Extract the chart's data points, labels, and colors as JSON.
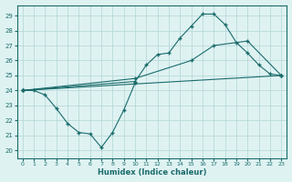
{
  "line1_x": [
    0,
    1,
    2,
    3,
    4,
    5,
    6,
    7,
    8,
    9,
    10
  ],
  "line1_y": [
    24,
    24,
    23.7,
    22.8,
    21.8,
    21.2,
    21.1,
    20.2,
    21.2,
    22.7,
    24.5
  ],
  "line2_x": [
    0,
    10,
    11,
    12,
    13,
    14,
    15,
    16,
    17,
    18,
    19,
    20,
    21,
    22,
    23
  ],
  "line2_y": [
    24,
    24.6,
    25.7,
    26.4,
    26.5,
    27.5,
    28.3,
    29.1,
    29.1,
    28.4,
    27.2,
    26.5,
    25.7,
    25.1,
    25.0
  ],
  "line3_x": [
    0,
    10,
    15,
    17,
    20,
    23
  ],
  "line3_y": [
    24,
    24.8,
    26.0,
    27.0,
    27.3,
    25.0
  ],
  "line4_x": [
    0,
    23
  ],
  "line4_y": [
    24,
    25.0
  ],
  "color": "#1a6b6b",
  "bg_color": "#dff2f2",
  "grid_color": "#b8dada",
  "xlabel": "Humidex (Indice chaleur)",
  "ylabel_ticks": [
    20,
    21,
    22,
    23,
    24,
    25,
    26,
    27,
    28,
    29
  ],
  "xlim": [
    -0.5,
    23.5
  ],
  "ylim": [
    19.5,
    29.7
  ],
  "xticks": [
    0,
    1,
    2,
    3,
    4,
    5,
    6,
    7,
    8,
    9,
    10,
    11,
    12,
    13,
    14,
    15,
    16,
    17,
    18,
    19,
    20,
    21,
    22,
    23
  ]
}
